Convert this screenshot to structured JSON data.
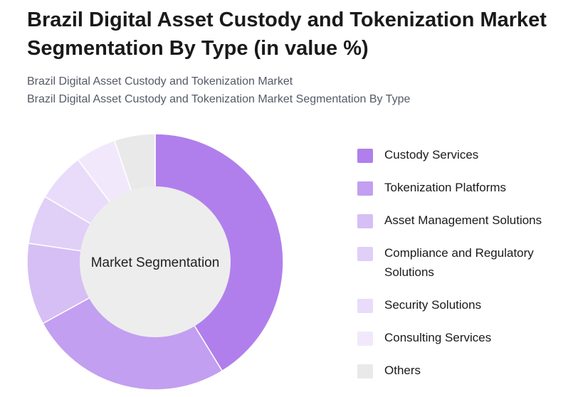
{
  "header": {
    "title": "Brazil Digital Asset Custody and Tokenization Market Segmentation By Type (in value %)",
    "subtitle_line1": "Brazil Digital Asset Custody and Tokenization Market",
    "subtitle_line2": "Brazil Digital Asset Custody and Tokenization Market Segmentation By Type"
  },
  "chart_data": {
    "type": "pie",
    "variant": "donut",
    "center_label": "Market Segmentation",
    "categories": [
      "Custody Services",
      "Tokenization Platforms",
      "Asset Management Solutions",
      "Compliance and Regulatory Solutions",
      "Security Solutions",
      "Consulting Services",
      "Others"
    ],
    "values": [
      40,
      25,
      10,
      6,
      6,
      5,
      5
    ],
    "colors": [
      "#b07fec",
      "#c29ff0",
      "#d6bff5",
      "#e0cff7",
      "#e9dcfa",
      "#f1e9fb",
      "#e9e9e9"
    ],
    "legend_position": "right"
  }
}
